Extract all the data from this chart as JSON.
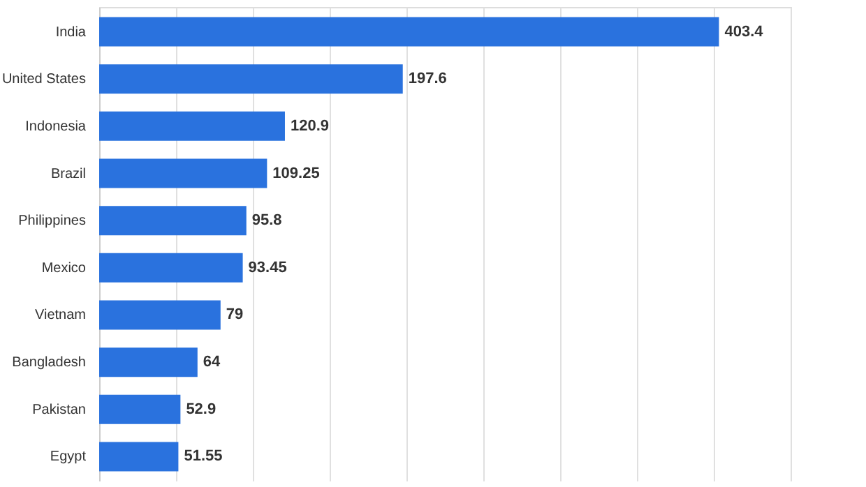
{
  "chart_data": {
    "type": "bar",
    "orientation": "horizontal",
    "categories": [
      "India",
      "United States",
      "Indonesia",
      "Brazil",
      "Philippines",
      "Mexico",
      "Vietnam",
      "Bangladesh",
      "Pakistan",
      "Egypt"
    ],
    "values": [
      403.4,
      197.6,
      120.9,
      109.25,
      95.8,
      93.45,
      79,
      64,
      52.9,
      51.55
    ],
    "color": "#2a72de",
    "data_labels": true,
    "grid": "x",
    "tick_labels": "y",
    "xlim": [
      0,
      450
    ],
    "xticks": [
      {
        "value": 0,
        "label": null
      },
      {
        "value": 50,
        "label": null
      },
      {
        "value": 100,
        "label": null
      },
      {
        "value": 150,
        "label": null
      },
      {
        "value": 200,
        "label": null
      },
      {
        "value": 250,
        "label": null
      },
      {
        "value": 300,
        "label": null
      },
      {
        "value": 350,
        "label": null
      },
      {
        "value": 400,
        "label": null
      },
      {
        "value": 450,
        "label": null
      }
    ]
  }
}
